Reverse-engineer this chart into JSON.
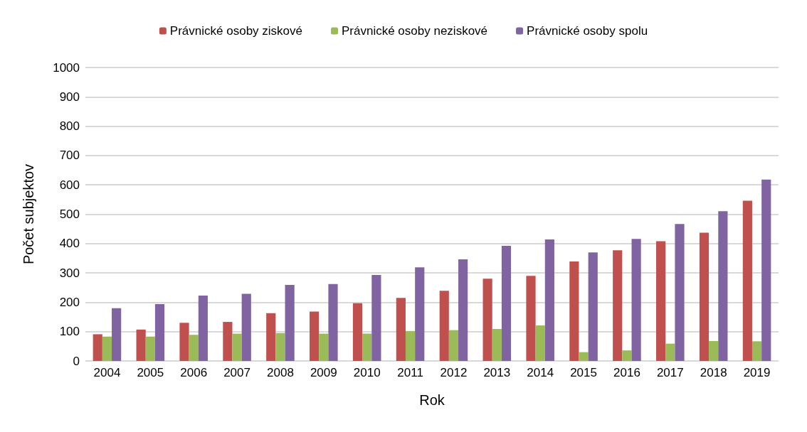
{
  "chart_data": {
    "type": "bar",
    "xlabel": "Rok",
    "ylabel": "Počet subjektov",
    "categories": [
      "2004",
      "2005",
      "2006",
      "2007",
      "2008",
      "2009",
      "2010",
      "2011",
      "2012",
      "2013",
      "2014",
      "2015",
      "2016",
      "2017",
      "2018",
      "2019"
    ],
    "series": [
      {
        "name": "Právnické osoby ziskové",
        "color": "#c0504d",
        "values": [
          91,
          107,
          130,
          133,
          163,
          168,
          197,
          215,
          239,
          280,
          290,
          339,
          377,
          408,
          437,
          546
        ]
      },
      {
        "name": "Právnické osoby neziskové",
        "color": "#9bbb59",
        "values": [
          83,
          83,
          89,
          93,
          95,
          93,
          93,
          102,
          105,
          109,
          121,
          30,
          36,
          59,
          68,
          67
        ]
      },
      {
        "name": "Právnické osoby spolu",
        "color": "#8064a2",
        "values": [
          180,
          194,
          223,
          229,
          259,
          262,
          293,
          319,
          346,
          392,
          414,
          370,
          416,
          467,
          510,
          618
        ]
      }
    ],
    "ylim": [
      0,
      1000
    ],
    "yticks": [
      0,
      100,
      200,
      300,
      400,
      500,
      600,
      700,
      800,
      900,
      1000
    ],
    "grid": "y",
    "legend": "top"
  }
}
